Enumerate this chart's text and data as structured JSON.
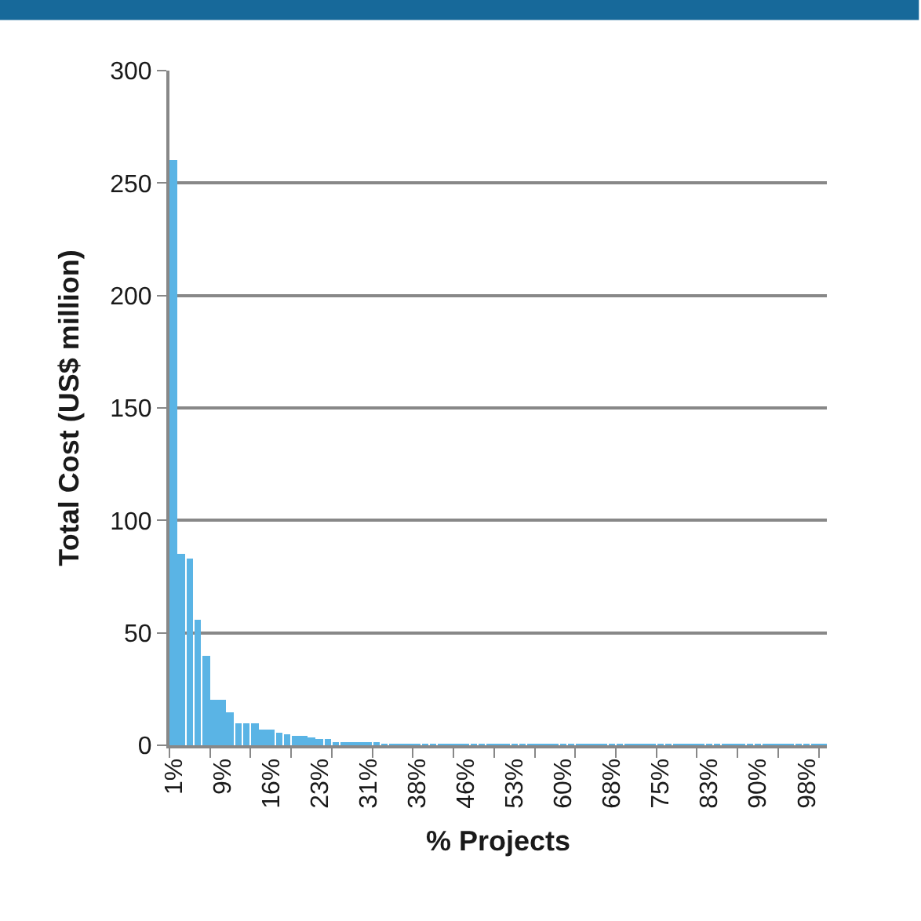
{
  "chart_data": {
    "type": "bar",
    "xlabel": "% Projects",
    "ylabel": "Total Cost (US$ million)",
    "categories": [
      "1%",
      null,
      null,
      null,
      null,
      null,
      "9%",
      null,
      null,
      null,
      null,
      null,
      "16%",
      null,
      null,
      null,
      null,
      null,
      "23%",
      null,
      null,
      null,
      null,
      null,
      "31%",
      null,
      null,
      null,
      null,
      null,
      "38%",
      null,
      null,
      null,
      null,
      null,
      "46%",
      null,
      null,
      null,
      null,
      null,
      "53%",
      null,
      null,
      null,
      null,
      null,
      "60%",
      null,
      null,
      null,
      null,
      null,
      "68%",
      null,
      null,
      null,
      null,
      null,
      "75%",
      null,
      null,
      null,
      null,
      null,
      "83%",
      null,
      null,
      null,
      null,
      null,
      "90%",
      null,
      null,
      null,
      null,
      null,
      "98%",
      null,
      null
    ],
    "values": [
      260,
      85,
      83,
      56,
      40,
      20,
      20,
      15,
      9.5,
      9.5,
      9.5,
      7,
      7,
      5.5,
      5,
      4.2,
      4,
      3.4,
      3,
      2.5,
      1.5,
      1.5,
      0.8,
      0.8,
      0.8,
      0.8,
      0.3,
      0.3,
      0.3,
      0.3,
      0.3,
      0.3,
      0.3,
      0.3,
      0.2,
      0.2,
      0.2,
      0.2,
      0.2,
      0.2,
      0.2,
      0.2,
      0.2,
      0.2,
      0.2,
      0.1,
      0.1,
      0.1,
      0.1,
      0.1,
      0.1,
      0.1,
      0.1,
      0.1,
      0.1,
      0.1,
      0.1,
      0.1,
      0.1,
      0.1,
      0.1,
      0.1,
      0.1,
      0.1,
      0.1,
      0.1,
      0.1,
      0.1,
      0.1,
      0.1,
      0.1,
      0.1,
      0.1,
      0.1,
      0.1,
      0.1,
      0.1,
      0.1,
      0.1,
      0.1,
      0.1
    ],
    "color": "#5ab4e5",
    "ylim": [
      0,
      300
    ],
    "yticks": [
      0,
      50,
      100,
      150,
      200,
      250,
      300
    ],
    "grid": "y"
  }
}
